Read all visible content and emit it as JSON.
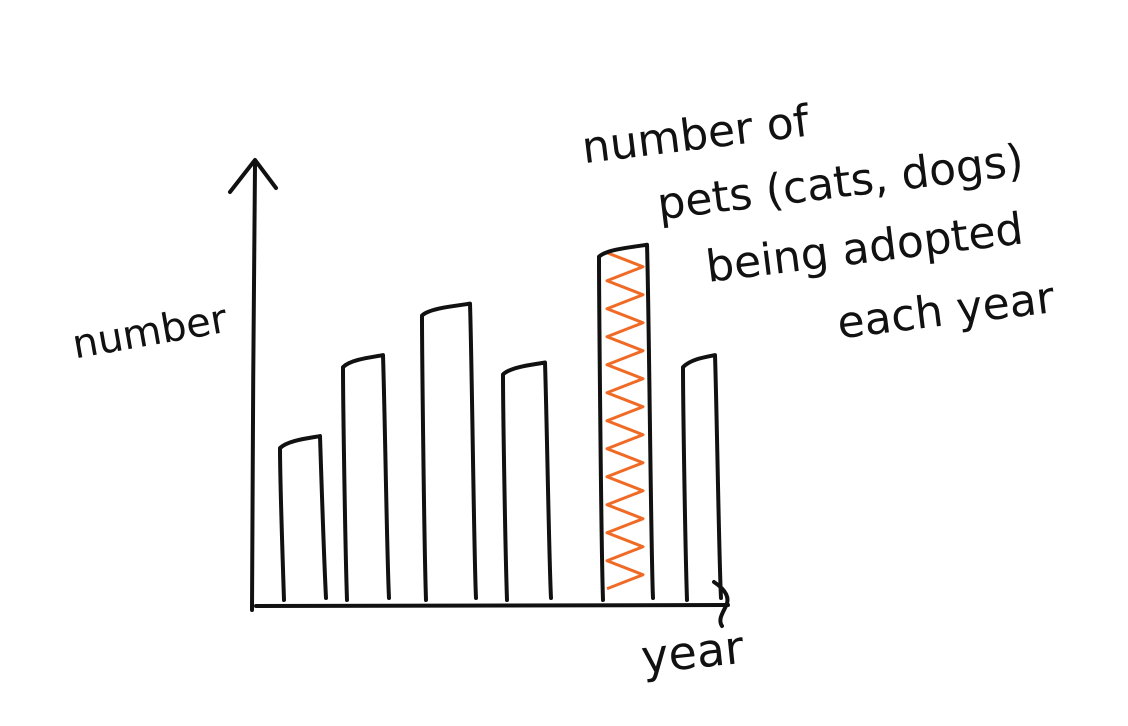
{
  "chart_data": {
    "type": "bar",
    "title_lines": [
      "number of",
      "pets (cats, dogs)",
      "being adopted",
      "each year"
    ],
    "xlabel": "year",
    "ylabel": "number",
    "categories": [
      "",
      "",
      "",
      "",
      "",
      ""
    ],
    "values": [
      44,
      66,
      80,
      64,
      96,
      66
    ],
    "highlight_index": 4,
    "ylim": [
      0,
      100
    ],
    "grid": false,
    "colors": {
      "ink": "#111111",
      "highlight": "#f06a25",
      "background": "#ffffff"
    }
  }
}
